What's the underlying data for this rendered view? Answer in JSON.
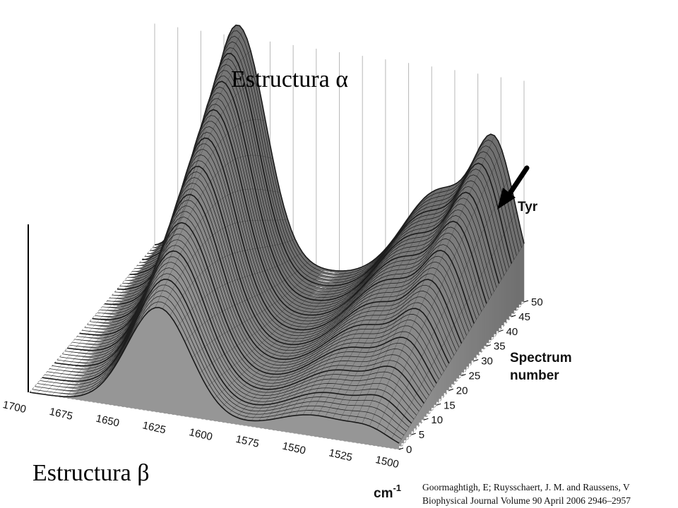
{
  "annotations": {
    "alpha_label": "Estructura α",
    "beta_label": "Estructura β",
    "tyr_label": "Tyr"
  },
  "citation": {
    "line1": "Goormaghtigh, E; Ruysschaert, J. M. and Raussens, V",
    "line2": "Biophysical Journal Volume 90 April 2006 2946–2957"
  },
  "chart_data": {
    "type": "surface",
    "title": "",
    "x_axis": {
      "label": "cm-1",
      "label_main": "cm",
      "label_sup": "-1",
      "ticks": [
        "1700",
        "1675",
        "1650",
        "1625",
        "1600",
        "1575",
        "1550",
        "1525",
        "1500"
      ],
      "range": [
        1700,
        1500
      ]
    },
    "y_axis": {
      "label_line1": "Spectrum",
      "label_line2": "number",
      "ticks": [
        "0",
        "5",
        "10",
        "15",
        "20",
        "25",
        "30",
        "35",
        "40",
        "45",
        "50"
      ],
      "range": [
        0,
        50
      ]
    },
    "spectra_count": 51,
    "peaks": [
      {
        "name": "Estructura α",
        "wavenumber": 1655,
        "peak_at_spectrum": 50,
        "relative_height": 1.0
      },
      {
        "name": "Estructura β",
        "wavenumber": 1630,
        "peak_at_spectrum": 0,
        "relative_height": 0.45
      },
      {
        "name": "Tyr",
        "wavenumber": 1515,
        "peak_at_spectrum": 50,
        "relative_height": 0.55
      }
    ],
    "grid": true,
    "colors": {
      "surface": "#8a8a8a",
      "mesh": "#1a1a1a",
      "grid": "#9a9a9a"
    }
  }
}
